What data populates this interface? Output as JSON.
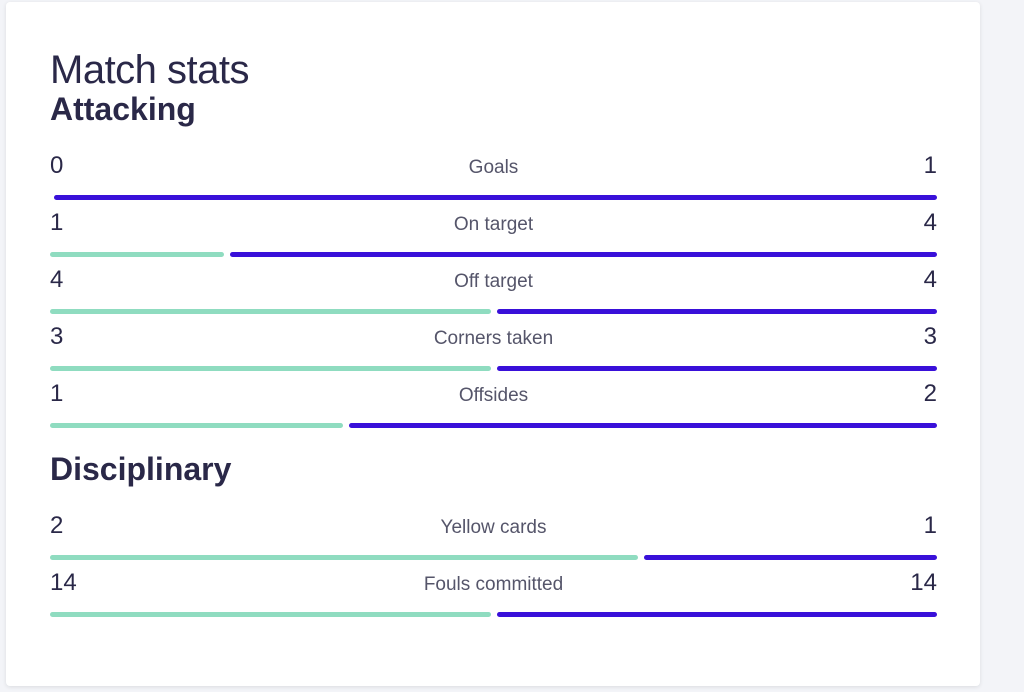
{
  "title": "Match stats",
  "colors": {
    "home": "#8fdcc0",
    "away": "#3910d9"
  },
  "sections": [
    {
      "title": "Attacking",
      "stats": [
        {
          "label": "Goals",
          "home": 0,
          "away": 1
        },
        {
          "label": "On target",
          "home": 1,
          "away": 4
        },
        {
          "label": "Off target",
          "home": 4,
          "away": 4
        },
        {
          "label": "Corners taken",
          "home": 3,
          "away": 3
        },
        {
          "label": "Offsides",
          "home": 1,
          "away": 2
        }
      ]
    },
    {
      "title": "Disciplinary",
      "stats": [
        {
          "label": "Yellow cards",
          "home": 2,
          "away": 1
        },
        {
          "label": "Fouls committed",
          "home": 14,
          "away": 14
        }
      ]
    }
  ]
}
